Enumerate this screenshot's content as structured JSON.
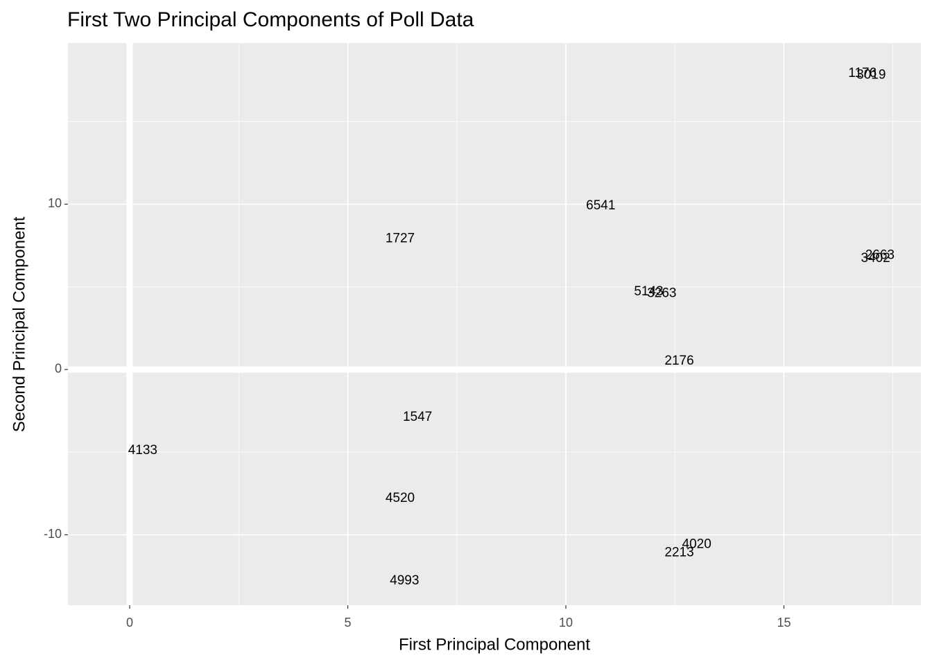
{
  "chart_data": {
    "type": "scatter",
    "title": "First Two Principal Components of Poll Data",
    "x_label": "First Principal Component",
    "y_label": "Second Principal Component",
    "xlim": [
      -1.415,
      18.14
    ],
    "ylim": [
      -14.26,
      19.75
    ],
    "xticks": [
      0,
      5,
      10,
      15
    ],
    "yticks": [
      -10,
      0,
      10
    ],
    "xminor": [
      2.5,
      7.5,
      12.5,
      17.5
    ],
    "yminor": [
      -5,
      5,
      15
    ],
    "hline": 0,
    "vline": 0,
    "grid": true,
    "series": [
      {
        "color": "#000000",
        "labels": [
          "1176",
          "3019",
          "6541",
          "2663",
          "3402",
          "5143",
          "3263",
          "2176",
          "4993",
          "4133",
          "1727",
          "1547",
          "4020",
          "2213",
          "4520"
        ],
        "x": [
          16.8,
          17.0,
          10.8,
          17.2,
          17.1,
          11.9,
          12.2,
          12.6,
          6.3,
          0.3,
          6.2,
          6.6,
          13.0,
          12.6,
          6.2
        ],
        "values": [
          17.9,
          17.8,
          9.9,
          6.9,
          6.7,
          4.7,
          4.6,
          0.5,
          -12.8,
          -4.9,
          7.9,
          -2.9,
          -10.6,
          -11.1,
          -7.8
        ]
      }
    ]
  }
}
